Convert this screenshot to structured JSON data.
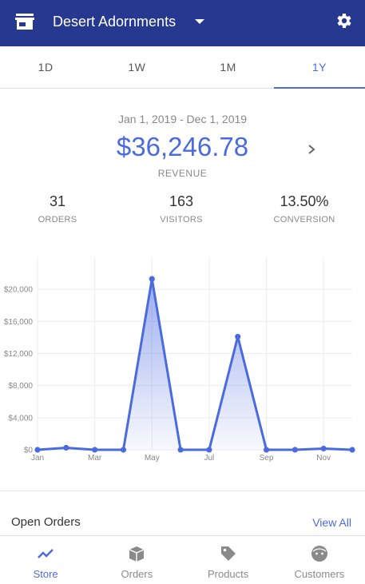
{
  "header": {
    "store_name": "Desert Adornments",
    "icons": {
      "store": "store-icon",
      "dropdown": "caret-down-icon",
      "settings": "gear-icon"
    },
    "background": "#26388f"
  },
  "tabs": [
    {
      "label": "1D",
      "active": false
    },
    {
      "label": "1W",
      "active": false
    },
    {
      "label": "1M",
      "active": false
    },
    {
      "label": "1Y",
      "active": true
    }
  ],
  "summary": {
    "date_range": "Jan 1, 2019 - Dec 1, 2019",
    "revenue_value": "$36,246.78",
    "revenue_label": "REVENUE",
    "stats": [
      {
        "value": "31",
        "label": "ORDERS"
      },
      {
        "value": "163",
        "label": "VISITORS"
      },
      {
        "value": "13.50%",
        "label": "CONVERSION"
      }
    ]
  },
  "chart_data": {
    "type": "area",
    "x": [
      "Jan",
      "Feb",
      "Mar",
      "Apr",
      "May",
      "Jun",
      "Jul",
      "Aug",
      "Sep",
      "Oct",
      "Nov",
      "Dec"
    ],
    "x_tick_labels": [
      "Jan",
      "Mar",
      "May",
      "Jul",
      "Sep",
      "Nov"
    ],
    "series": [
      {
        "values": [
          0,
          250,
          0,
          0,
          21300,
          0,
          0,
          14100,
          0,
          0,
          150,
          0
        ]
      }
    ],
    "y_tick_labels": [
      "$0",
      "$4,000",
      "$8,000",
      "$12,000",
      "$16,000",
      "$20,000"
    ],
    "ylim": [
      0,
      24000
    ],
    "grid": true,
    "color": "#4a6be0"
  },
  "orders": {
    "title": "Open Orders",
    "view_all": "View All"
  },
  "bottom_nav": [
    {
      "label": "Store",
      "icon": "chart-line-icon",
      "active": true
    },
    {
      "label": "Orders",
      "icon": "box-icon",
      "active": false
    },
    {
      "label": "Products",
      "icon": "tag-icon",
      "active": false
    },
    {
      "label": "Customers",
      "icon": "face-icon",
      "active": false
    }
  ],
  "colors": {
    "accent": "#4a6be0",
    "muted": "#888888"
  }
}
